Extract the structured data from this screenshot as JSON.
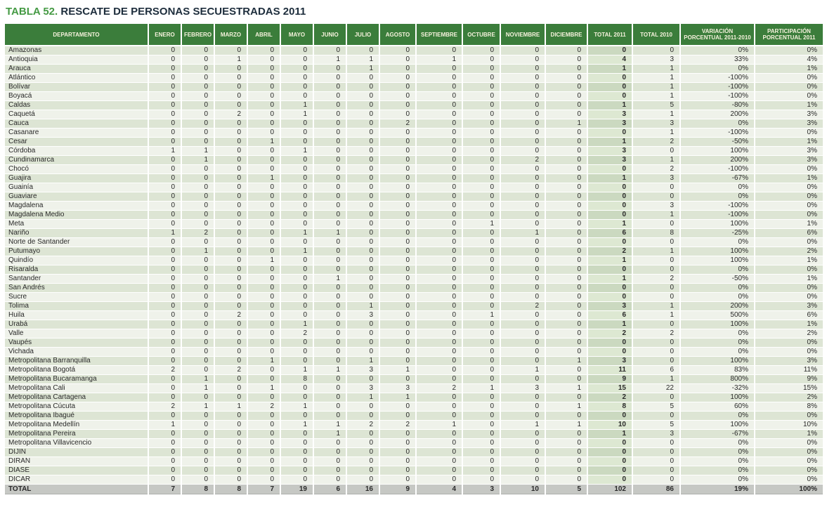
{
  "title": {
    "label": "TABLA 52.",
    "text": " RESCATE DE PERSONAS SECUESTRADAS 2011"
  },
  "colors": {
    "header_green": "#3b7d3b",
    "header_text": "#f6f2dd",
    "title_green": "#459a44",
    "title_dark": "#1d2d3c",
    "row_odd": "#dde5d4",
    "row_even": "#eff2ea",
    "total2011_odd": "#cbd9c0",
    "total2011_even": "#dde8d2",
    "total_row_bg": "#c6c8c4"
  },
  "table": {
    "columns": [
      "DEPARTAMENTO",
      "ENERO",
      "FEBRERO",
      "MARZO",
      "ABRIL",
      "MAYO",
      "JUNIO",
      "JULIO",
      "AGOSTO",
      "SEPTIEMBRE",
      "OCTUBRE",
      "NOVIEMBRE",
      "DICIEMBRE",
      "TOTAL 2011",
      "TOTAL 2010",
      "VARIACIÓN\nPORCENTUAL 2011-2010",
      "PARTICIPACIÓN\nPORCENTUAL 2011"
    ],
    "rows": [
      {
        "departamento": "Amazonas",
        "meses": [
          0,
          0,
          0,
          0,
          0,
          0,
          0,
          0,
          0,
          0,
          0,
          0
        ],
        "total_2011": 0,
        "total_2010": 0,
        "variacion": "0%",
        "participacion": "0%"
      },
      {
        "departamento": "Antioquia",
        "meses": [
          0,
          0,
          1,
          0,
          0,
          1,
          1,
          0,
          1,
          0,
          0,
          0
        ],
        "total_2011": 4,
        "total_2010": 3,
        "variacion": "33%",
        "participacion": "4%"
      },
      {
        "departamento": "Arauca",
        "meses": [
          0,
          0,
          0,
          0,
          0,
          0,
          1,
          0,
          0,
          0,
          0,
          0
        ],
        "total_2011": 1,
        "total_2010": 1,
        "variacion": "0%",
        "participacion": "1%"
      },
      {
        "departamento": "Atlántico",
        "meses": [
          0,
          0,
          0,
          0,
          0,
          0,
          0,
          0,
          0,
          0,
          0,
          0
        ],
        "total_2011": 0,
        "total_2010": 1,
        "variacion": "-100%",
        "participacion": "0%"
      },
      {
        "departamento": "Bolívar",
        "meses": [
          0,
          0,
          0,
          0,
          0,
          0,
          0,
          0,
          0,
          0,
          0,
          0
        ],
        "total_2011": 0,
        "total_2010": 1,
        "variacion": "-100%",
        "participacion": "0%"
      },
      {
        "departamento": "Boyacá",
        "meses": [
          0,
          0,
          0,
          0,
          0,
          0,
          0,
          0,
          0,
          0,
          0,
          0
        ],
        "total_2011": 0,
        "total_2010": 1,
        "variacion": "-100%",
        "participacion": "0%"
      },
      {
        "departamento": "Caldas",
        "meses": [
          0,
          0,
          0,
          0,
          1,
          0,
          0,
          0,
          0,
          0,
          0,
          0
        ],
        "total_2011": 1,
        "total_2010": 5,
        "variacion": "-80%",
        "participacion": "1%"
      },
      {
        "departamento": "Caquetá",
        "meses": [
          0,
          0,
          2,
          0,
          1,
          0,
          0,
          0,
          0,
          0,
          0,
          0
        ],
        "total_2011": 3,
        "total_2010": 1,
        "variacion": "200%",
        "participacion": "3%"
      },
      {
        "departamento": "Cauca",
        "meses": [
          0,
          0,
          0,
          0,
          0,
          0,
          0,
          2,
          0,
          0,
          0,
          1
        ],
        "total_2011": 3,
        "total_2010": 3,
        "variacion": "0%",
        "participacion": "3%"
      },
      {
        "departamento": "Casanare",
        "meses": [
          0,
          0,
          0,
          0,
          0,
          0,
          0,
          0,
          0,
          0,
          0,
          0
        ],
        "total_2011": 0,
        "total_2010": 1,
        "variacion": "-100%",
        "participacion": "0%"
      },
      {
        "departamento": "Cesar",
        "meses": [
          0,
          0,
          0,
          1,
          0,
          0,
          0,
          0,
          0,
          0,
          0,
          0
        ],
        "total_2011": 1,
        "total_2010": 2,
        "variacion": "-50%",
        "participacion": "1%"
      },
      {
        "departamento": "Córdoba",
        "meses": [
          1,
          1,
          0,
          0,
          1,
          0,
          0,
          0,
          0,
          0,
          0,
          0
        ],
        "total_2011": 3,
        "total_2010": 0,
        "variacion": "100%",
        "participacion": "3%"
      },
      {
        "departamento": "Cundinamarca",
        "meses": [
          0,
          1,
          0,
          0,
          0,
          0,
          0,
          0,
          0,
          0,
          2,
          0
        ],
        "total_2011": 3,
        "total_2010": 1,
        "variacion": "200%",
        "participacion": "3%"
      },
      {
        "departamento": "Chocó",
        "meses": [
          0,
          0,
          0,
          0,
          0,
          0,
          0,
          0,
          0,
          0,
          0,
          0
        ],
        "total_2011": 0,
        "total_2010": 2,
        "variacion": "-100%",
        "participacion": "0%"
      },
      {
        "departamento": "Guajira",
        "meses": [
          0,
          0,
          0,
          1,
          0,
          0,
          0,
          0,
          0,
          0,
          0,
          0
        ],
        "total_2011": 1,
        "total_2010": 3,
        "variacion": "-67%",
        "participacion": "1%"
      },
      {
        "departamento": "Guainía",
        "meses": [
          0,
          0,
          0,
          0,
          0,
          0,
          0,
          0,
          0,
          0,
          0,
          0
        ],
        "total_2011": 0,
        "total_2010": 0,
        "variacion": "0%",
        "participacion": "0%"
      },
      {
        "departamento": "Guaviare",
        "meses": [
          0,
          0,
          0,
          0,
          0,
          0,
          0,
          0,
          0,
          0,
          0,
          0
        ],
        "total_2011": 0,
        "total_2010": 0,
        "variacion": "0%",
        "participacion": "0%"
      },
      {
        "departamento": "Magdalena",
        "meses": [
          0,
          0,
          0,
          0,
          0,
          0,
          0,
          0,
          0,
          0,
          0,
          0
        ],
        "total_2011": 0,
        "total_2010": 3,
        "variacion": "-100%",
        "participacion": "0%"
      },
      {
        "departamento": "Magdalena Medio",
        "meses": [
          0,
          0,
          0,
          0,
          0,
          0,
          0,
          0,
          0,
          0,
          0,
          0
        ],
        "total_2011": 0,
        "total_2010": 1,
        "variacion": "-100%",
        "participacion": "0%"
      },
      {
        "departamento": "Meta",
        "meses": [
          0,
          0,
          0,
          0,
          0,
          0,
          0,
          0,
          0,
          1,
          0,
          0
        ],
        "total_2011": 1,
        "total_2010": 0,
        "variacion": "100%",
        "participacion": "1%"
      },
      {
        "departamento": "Nariño",
        "meses": [
          1,
          2,
          0,
          0,
          1,
          1,
          0,
          0,
          0,
          0,
          1,
          0
        ],
        "total_2011": 6,
        "total_2010": 8,
        "variacion": "-25%",
        "participacion": "6%"
      },
      {
        "departamento": "Norte de Santander",
        "meses": [
          0,
          0,
          0,
          0,
          0,
          0,
          0,
          0,
          0,
          0,
          0,
          0
        ],
        "total_2011": 0,
        "total_2010": 0,
        "variacion": "0%",
        "participacion": "0%"
      },
      {
        "departamento": "Putumayo",
        "meses": [
          0,
          1,
          0,
          0,
          1,
          0,
          0,
          0,
          0,
          0,
          0,
          0
        ],
        "total_2011": 2,
        "total_2010": 1,
        "variacion": "100%",
        "participacion": "2%"
      },
      {
        "departamento": "Quindío",
        "meses": [
          0,
          0,
          0,
          1,
          0,
          0,
          0,
          0,
          0,
          0,
          0,
          0
        ],
        "total_2011": 1,
        "total_2010": 0,
        "variacion": "100%",
        "participacion": "1%"
      },
      {
        "departamento": "Risaralda",
        "meses": [
          0,
          0,
          0,
          0,
          0,
          0,
          0,
          0,
          0,
          0,
          0,
          0
        ],
        "total_2011": 0,
        "total_2010": 0,
        "variacion": "0%",
        "participacion": "0%"
      },
      {
        "departamento": "Santander",
        "meses": [
          0,
          0,
          0,
          0,
          0,
          1,
          0,
          0,
          0,
          0,
          0,
          0
        ],
        "total_2011": 1,
        "total_2010": 2,
        "variacion": "-50%",
        "participacion": "1%"
      },
      {
        "departamento": "San Andrés",
        "meses": [
          0,
          0,
          0,
          0,
          0,
          0,
          0,
          0,
          0,
          0,
          0,
          0
        ],
        "total_2011": 0,
        "total_2010": 0,
        "variacion": "0%",
        "participacion": "0%"
      },
      {
        "departamento": "Sucre",
        "meses": [
          0,
          0,
          0,
          0,
          0,
          0,
          0,
          0,
          0,
          0,
          0,
          0
        ],
        "total_2011": 0,
        "total_2010": 0,
        "variacion": "0%",
        "participacion": "0%"
      },
      {
        "departamento": "Tolima",
        "meses": [
          0,
          0,
          0,
          0,
          0,
          0,
          1,
          0,
          0,
          0,
          2,
          0
        ],
        "total_2011": 3,
        "total_2010": 1,
        "variacion": "200%",
        "participacion": "3%"
      },
      {
        "departamento": "Huila",
        "meses": [
          0,
          0,
          2,
          0,
          0,
          0,
          3,
          0,
          0,
          1,
          0,
          0
        ],
        "total_2011": 6,
        "total_2010": 1,
        "variacion": "500%",
        "participacion": "6%"
      },
      {
        "departamento": "Urabá",
        "meses": [
          0,
          0,
          0,
          0,
          1,
          0,
          0,
          0,
          0,
          0,
          0,
          0
        ],
        "total_2011": 1,
        "total_2010": 0,
        "variacion": "100%",
        "participacion": "1%"
      },
      {
        "departamento": "Valle",
        "meses": [
          0,
          0,
          0,
          0,
          2,
          0,
          0,
          0,
          0,
          0,
          0,
          0
        ],
        "total_2011": 2,
        "total_2010": 2,
        "variacion": "0%",
        "participacion": "2%"
      },
      {
        "departamento": "Vaupés",
        "meses": [
          0,
          0,
          0,
          0,
          0,
          0,
          0,
          0,
          0,
          0,
          0,
          0
        ],
        "total_2011": 0,
        "total_2010": 0,
        "variacion": "0%",
        "participacion": "0%"
      },
      {
        "departamento": "Vichada",
        "meses": [
          0,
          0,
          0,
          0,
          0,
          0,
          0,
          0,
          0,
          0,
          0,
          0
        ],
        "total_2011": 0,
        "total_2010": 0,
        "variacion": "0%",
        "participacion": "0%"
      },
      {
        "departamento": "Metropolitana Barranquilla",
        "meses": [
          0,
          0,
          0,
          1,
          0,
          0,
          1,
          0,
          0,
          0,
          0,
          1
        ],
        "total_2011": 3,
        "total_2010": 0,
        "variacion": "100%",
        "participacion": "3%"
      },
      {
        "departamento": "Metropolitana Bogotá",
        "meses": [
          2,
          0,
          2,
          0,
          1,
          1,
          3,
          1,
          0,
          0,
          1,
          0
        ],
        "total_2011": 11,
        "total_2010": 6,
        "variacion": "83%",
        "participacion": "11%"
      },
      {
        "departamento": "Metropolitana Bucaramanga",
        "meses": [
          0,
          1,
          0,
          0,
          8,
          0,
          0,
          0,
          0,
          0,
          0,
          0
        ],
        "total_2011": 9,
        "total_2010": 1,
        "variacion": "800%",
        "participacion": "9%"
      },
      {
        "departamento": "Metropolitana Cali",
        "meses": [
          0,
          1,
          0,
          1,
          0,
          0,
          3,
          3,
          2,
          1,
          3,
          1
        ],
        "total_2011": 15,
        "total_2010": 22,
        "variacion": "-32%",
        "participacion": "15%"
      },
      {
        "departamento": "Metropolitana Cartagena",
        "meses": [
          0,
          0,
          0,
          0,
          0,
          0,
          1,
          1,
          0,
          0,
          0,
          0
        ],
        "total_2011": 2,
        "total_2010": 0,
        "variacion": "100%",
        "participacion": "2%"
      },
      {
        "departamento": "Metropolitana Cúcuta",
        "meses": [
          2,
          1,
          1,
          2,
          1,
          0,
          0,
          0,
          0,
          0,
          0,
          1
        ],
        "total_2011": 8,
        "total_2010": 5,
        "variacion": "60%",
        "participacion": "8%"
      },
      {
        "departamento": "Metropolitana Ibagué",
        "meses": [
          0,
          0,
          0,
          0,
          0,
          0,
          0,
          0,
          0,
          0,
          0,
          0
        ],
        "total_2011": 0,
        "total_2010": 0,
        "variacion": "0%",
        "participacion": "0%"
      },
      {
        "departamento": "Metropolitana Medellín",
        "meses": [
          1,
          0,
          0,
          0,
          1,
          1,
          2,
          2,
          1,
          0,
          1,
          1
        ],
        "total_2011": 10,
        "total_2010": 5,
        "variacion": "100%",
        "participacion": "10%"
      },
      {
        "departamento": "Metropolitana Pereira",
        "meses": [
          0,
          0,
          0,
          0,
          0,
          1,
          0,
          0,
          0,
          0,
          0,
          0
        ],
        "total_2011": 1,
        "total_2010": 3,
        "variacion": "-67%",
        "participacion": "1%"
      },
      {
        "departamento": "Metropolitana Villavicencio",
        "meses": [
          0,
          0,
          0,
          0,
          0,
          0,
          0,
          0,
          0,
          0,
          0,
          0
        ],
        "total_2011": 0,
        "total_2010": 0,
        "variacion": "0%",
        "participacion": "0%"
      },
      {
        "departamento": "DIJIN",
        "meses": [
          0,
          0,
          0,
          0,
          0,
          0,
          0,
          0,
          0,
          0,
          0,
          0
        ],
        "total_2011": 0,
        "total_2010": 0,
        "variacion": "0%",
        "participacion": "0%"
      },
      {
        "departamento": "DIRAN",
        "meses": [
          0,
          0,
          0,
          0,
          0,
          0,
          0,
          0,
          0,
          0,
          0,
          0
        ],
        "total_2011": 0,
        "total_2010": 0,
        "variacion": "0%",
        "participacion": "0%"
      },
      {
        "departamento": "DIASE",
        "meses": [
          0,
          0,
          0,
          0,
          0,
          0,
          0,
          0,
          0,
          0,
          0,
          0
        ],
        "total_2011": 0,
        "total_2010": 0,
        "variacion": "0%",
        "participacion": "0%"
      },
      {
        "departamento": "DICAR",
        "meses": [
          0,
          0,
          0,
          0,
          0,
          0,
          0,
          0,
          0,
          0,
          0,
          0
        ],
        "total_2011": 0,
        "total_2010": 0,
        "variacion": "0%",
        "participacion": "0%"
      }
    ],
    "total_row": {
      "departamento": "TOTAL",
      "meses": [
        7,
        8,
        8,
        7,
        19,
        6,
        16,
        9,
        4,
        3,
        10,
        5
      ],
      "total_2011": 102,
      "total_2010": 86,
      "variacion": "19%",
      "participacion": "100%"
    }
  }
}
